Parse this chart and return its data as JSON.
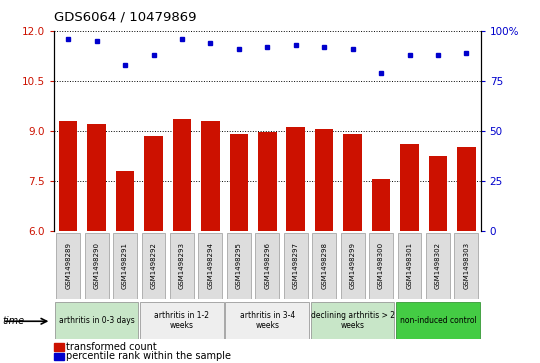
{
  "title": "GDS6064 / 10479869",
  "samples": [
    "GSM1498289",
    "GSM1498290",
    "GSM1498291",
    "GSM1498292",
    "GSM1498293",
    "GSM1498294",
    "GSM1498295",
    "GSM1498296",
    "GSM1498297",
    "GSM1498298",
    "GSM1498299",
    "GSM1498300",
    "GSM1498301",
    "GSM1498302",
    "GSM1498303"
  ],
  "bar_values": [
    9.3,
    9.2,
    7.8,
    8.85,
    9.35,
    9.3,
    8.9,
    8.95,
    9.1,
    9.05,
    8.9,
    7.55,
    8.6,
    8.25,
    8.5
  ],
  "dot_values": [
    96,
    95,
    83,
    88,
    96,
    94,
    91,
    92,
    93,
    92,
    91,
    79,
    88,
    88,
    89
  ],
  "ylim_left": [
    6,
    12
  ],
  "ylim_right": [
    0,
    100
  ],
  "yticks_left": [
    6,
    7.5,
    9,
    10.5,
    12
  ],
  "yticks_right": [
    0,
    25,
    50,
    75,
    100
  ],
  "bar_color": "#cc1100",
  "dot_color": "#0000cc",
  "groups": [
    {
      "label": "arthritis in 0-3 days",
      "start": 0,
      "end": 3,
      "color": "#c8e6c8"
    },
    {
      "label": "arthritis in 1-2\nweeks",
      "start": 3,
      "end": 6,
      "color": "#eeeeee"
    },
    {
      "label": "arthritis in 3-4\nweeks",
      "start": 6,
      "end": 9,
      "color": "#eeeeee"
    },
    {
      "label": "declining arthritis > 2\nweeks",
      "start": 9,
      "end": 12,
      "color": "#c8e6c8"
    },
    {
      "label": "non-induced control",
      "start": 12,
      "end": 15,
      "color": "#44cc44"
    }
  ],
  "legend_bar_label": "transformed count",
  "legend_dot_label": "percentile rank within the sample",
  "grid_color": "#000000"
}
